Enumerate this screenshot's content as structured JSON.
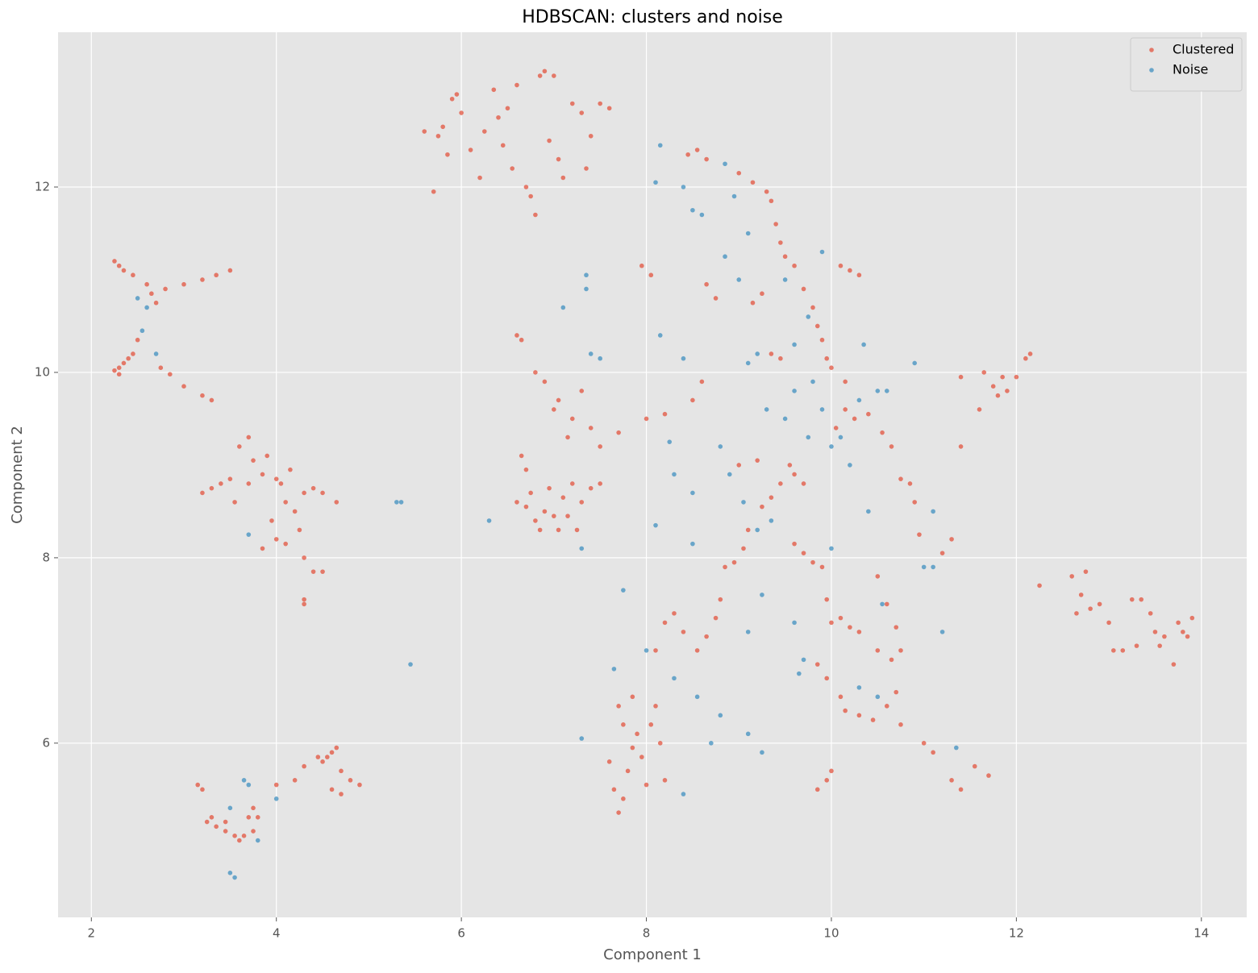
{
  "chart_data": {
    "type": "scatter",
    "title": "HDBSCAN: clusters and noise",
    "x_label": "Component 1",
    "y_label": "Component 2",
    "xlim": [
      1.64,
      14.49
    ],
    "ylim": [
      4.12,
      13.67
    ],
    "xticks": [
      2,
      4,
      6,
      8,
      10,
      12,
      14
    ],
    "yticks": [
      6,
      8,
      10,
      12
    ],
    "grid": true,
    "legend": "upper right",
    "series": [
      {
        "name": "Clustered",
        "color": "#E24A33",
        "x": [
          2.25,
          2.35,
          2.45,
          2.6,
          2.65,
          2.8,
          3.0,
          3.2,
          3.35,
          3.5,
          2.7,
          2.3,
          2.25,
          2.3,
          2.35,
          2.4,
          2.45,
          2.3,
          2.75,
          2.85,
          3.0,
          3.2,
          3.3,
          2.5,
          3.2,
          3.3,
          3.5,
          3.6,
          3.7,
          3.75,
          3.85,
          3.9,
          4.0,
          4.05,
          4.1,
          4.2,
          4.3,
          4.4,
          4.5,
          4.65,
          3.55,
          3.85,
          4.0,
          4.1,
          4.25,
          4.3,
          4.4,
          4.5,
          4.3,
          4.3,
          3.95,
          3.7,
          4.15,
          3.4,
          3.15,
          3.2,
          3.25,
          3.35,
          3.45,
          3.55,
          3.65,
          3.7,
          3.75,
          3.8,
          3.6,
          3.3,
          3.45,
          3.75,
          4.0,
          4.2,
          4.3,
          4.45,
          4.55,
          4.6,
          4.65,
          4.7,
          4.8,
          4.9,
          4.7,
          4.6,
          4.5,
          5.75,
          5.8,
          5.85,
          5.9,
          5.95,
          6.0,
          6.1,
          6.25,
          6.35,
          6.4,
          6.5,
          6.55,
          6.6,
          6.7,
          6.75,
          6.85,
          6.9,
          6.95,
          7.0,
          7.05,
          7.1,
          7.2,
          7.3,
          7.4,
          7.5,
          7.6,
          6.45,
          6.2,
          5.7,
          6.8,
          7.35,
          5.6,
          6.6,
          6.65,
          6.8,
          6.9,
          7.0,
          7.05,
          7.15,
          7.2,
          7.3,
          7.4,
          7.5,
          7.7,
          6.65,
          6.7,
          6.6,
          6.7,
          6.8,
          6.9,
          7.0,
          7.05,
          7.15,
          7.25,
          7.3,
          7.4,
          7.5,
          6.75,
          6.95,
          7.1,
          6.85,
          7.2,
          7.6,
          7.65,
          7.7,
          7.75,
          7.8,
          7.85,
          7.9,
          7.95,
          8.0,
          8.05,
          8.1,
          8.15,
          8.2,
          7.7,
          7.75,
          7.85,
          8.1,
          8.2,
          8.3,
          8.4,
          8.55,
          8.65,
          8.75,
          8.8,
          8.85,
          8.95,
          9.05,
          9.1,
          9.25,
          9.35,
          9.45,
          9.55,
          9.6,
          9.7,
          9.2,
          9.0,
          9.6,
          9.7,
          9.8,
          9.9,
          9.95,
          10.0,
          10.1,
          10.2,
          10.3,
          9.85,
          9.95,
          10.1,
          10.15,
          10.3,
          10.45,
          10.6,
          10.7,
          10.75,
          10.5,
          10.6,
          10.7,
          10.75,
          10.5,
          10.65,
          8.45,
          8.55,
          8.65,
          9.0,
          9.15,
          9.3,
          9.35,
          9.4,
          9.45,
          9.5,
          9.6,
          9.7,
          9.8,
          9.85,
          9.9,
          9.95,
          10.0,
          9.35,
          9.45,
          9.15,
          9.25,
          10.1,
          10.2,
          10.3,
          10.15,
          10.15,
          10.25,
          10.05,
          10.4,
          10.55,
          10.65,
          10.75,
          10.85,
          10.9,
          10.95,
          11.2,
          11.3,
          8.65,
          8.75,
          8.6,
          8.5,
          8.0,
          8.2,
          7.95,
          8.05,
          9.95,
          10.0,
          9.85,
          11.1,
          11.3,
          11.4,
          11.55,
          11.7,
          11.0,
          11.4,
          11.4,
          11.65,
          11.75,
          11.85,
          11.9,
          12.0,
          12.1,
          12.15,
          11.8,
          11.6,
          12.25,
          12.6,
          12.7,
          12.75,
          12.8,
          12.9,
          13.0,
          13.05,
          13.15,
          13.3,
          13.35,
          13.45,
          13.5,
          13.6,
          13.7,
          13.75,
          13.8,
          13.85,
          13.9,
          12.65,
          13.25,
          13.55
        ],
        "values": [
          11.2,
          11.1,
          11.05,
          10.95,
          10.85,
          10.9,
          10.95,
          11.0,
          11.05,
          11.1,
          10.75,
          11.15,
          10.02,
          10.05,
          10.1,
          10.15,
          10.2,
          9.98,
          10.05,
          9.98,
          9.85,
          9.75,
          9.7,
          10.35,
          8.7,
          8.75,
          8.85,
          9.2,
          9.3,
          9.05,
          8.9,
          9.1,
          8.85,
          8.8,
          8.6,
          8.5,
          8.7,
          8.75,
          8.7,
          8.6,
          8.6,
          8.1,
          8.2,
          8.15,
          8.3,
          8.0,
          7.85,
          7.85,
          7.55,
          7.5,
          8.4,
          8.8,
          8.95,
          8.8,
          5.55,
          5.5,
          5.15,
          5.1,
          5.05,
          5.0,
          5.0,
          5.2,
          5.3,
          5.2,
          4.95,
          5.2,
          5.15,
          5.05,
          5.55,
          5.6,
          5.75,
          5.85,
          5.85,
          5.9,
          5.95,
          5.7,
          5.6,
          5.55,
          5.45,
          5.5,
          5.8,
          12.55,
          12.65,
          12.35,
          12.95,
          13.0,
          12.8,
          12.4,
          12.6,
          13.05,
          12.75,
          12.85,
          12.2,
          13.1,
          12.0,
          11.9,
          13.2,
          13.25,
          12.5,
          13.2,
          12.3,
          12.1,
          12.9,
          12.8,
          12.55,
          12.9,
          12.85,
          12.45,
          12.1,
          11.95,
          11.7,
          12.2,
          12.6,
          10.4,
          10.35,
          10.0,
          9.9,
          9.6,
          9.7,
          9.3,
          9.5,
          9.8,
          9.4,
          9.2,
          9.35,
          9.1,
          8.95,
          8.6,
          8.55,
          8.4,
          8.5,
          8.45,
          8.3,
          8.45,
          8.3,
          8.6,
          8.75,
          8.8,
          8.7,
          8.75,
          8.65,
          8.3,
          8.8,
          5.8,
          5.5,
          5.25,
          5.4,
          5.7,
          5.95,
          6.1,
          5.85,
          5.55,
          6.2,
          6.4,
          6.0,
          5.6,
          6.4,
          6.2,
          6.5,
          7.0,
          7.3,
          7.4,
          7.2,
          7.0,
          7.15,
          7.35,
          7.55,
          7.9,
          7.95,
          8.1,
          8.3,
          8.55,
          8.65,
          8.8,
          9.0,
          8.9,
          8.8,
          9.05,
          9.0,
          8.15,
          8.05,
          7.95,
          7.9,
          7.55,
          7.3,
          7.35,
          7.25,
          7.2,
          6.85,
          6.7,
          6.5,
          6.35,
          6.3,
          6.25,
          6.4,
          6.55,
          6.2,
          7.8,
          7.5,
          7.25,
          7.0,
          7.0,
          6.9,
          12.35,
          12.4,
          12.3,
          12.15,
          12.05,
          11.95,
          11.85,
          11.6,
          11.4,
          11.25,
          11.15,
          10.9,
          10.7,
          10.5,
          10.35,
          10.15,
          10.05,
          10.2,
          10.15,
          10.75,
          10.85,
          11.15,
          11.1,
          11.05,
          9.9,
          9.6,
          9.5,
          9.4,
          9.55,
          9.35,
          9.2,
          8.85,
          8.8,
          8.6,
          8.25,
          8.05,
          8.2,
          10.95,
          10.8,
          9.9,
          9.7,
          9.5,
          9.55,
          11.15,
          11.05,
          5.6,
          5.7,
          5.5,
          5.9,
          5.6,
          5.5,
          5.75,
          5.65,
          6.0,
          9.2,
          9.95,
          10.0,
          9.85,
          9.95,
          9.8,
          9.95,
          10.15,
          10.2,
          9.75,
          9.6,
          7.7,
          7.8,
          7.6,
          7.85,
          7.45,
          7.5,
          7.3,
          7.0,
          7.0,
          7.05,
          7.55,
          7.4,
          7.2,
          7.15,
          6.85,
          7.3,
          7.2,
          7.15,
          7.35,
          7.4,
          7.55,
          7.05
        ]
      },
      {
        "name": "Noise",
        "color": "#348ABD",
        "x": [
          2.5,
          2.6,
          2.55,
          2.7,
          5.3,
          5.35,
          5.45,
          6.3,
          7.1,
          7.35,
          7.35,
          7.3,
          7.4,
          7.5,
          7.3,
          3.55,
          3.5,
          3.7,
          3.5,
          3.65,
          3.8,
          4.0,
          3.7,
          8.1,
          8.15,
          8.4,
          8.5,
          8.6,
          8.85,
          8.95,
          9.1,
          8.85,
          9.0,
          9.2,
          9.1,
          9.3,
          9.5,
          9.6,
          9.75,
          9.8,
          9.9,
          10.0,
          10.1,
          10.2,
          10.3,
          10.35,
          10.5,
          10.4,
          9.6,
          9.75,
          9.5,
          9.9,
          9.2,
          9.05,
          8.9,
          8.8,
          8.3,
          8.5,
          8.1,
          8.5,
          7.75,
          8.0,
          8.3,
          8.55,
          8.7,
          8.8,
          9.1,
          9.25,
          9.1,
          9.25,
          9.35,
          9.6,
          9.7,
          9.65,
          10.0,
          10.3,
          10.5,
          10.55,
          11.0,
          11.1,
          11.2,
          11.35,
          11.1,
          8.15,
          8.4,
          8.25,
          8.4,
          7.65,
          10.9,
          10.6
        ],
        "values": [
          10.8,
          10.7,
          10.45,
          10.2,
          8.6,
          8.6,
          6.85,
          8.4,
          10.7,
          11.05,
          10.9,
          8.1,
          10.2,
          10.15,
          6.05,
          4.55,
          4.6,
          5.55,
          5.3,
          5.6,
          4.95,
          5.4,
          8.25,
          12.05,
          12.45,
          12.0,
          11.75,
          11.7,
          12.25,
          11.9,
          11.5,
          11.25,
          11.0,
          10.2,
          10.1,
          9.6,
          9.5,
          9.8,
          9.3,
          9.9,
          9.6,
          9.2,
          9.3,
          9.0,
          9.7,
          10.3,
          9.8,
          8.5,
          10.3,
          10.6,
          11.0,
          11.3,
          8.3,
          8.6,
          8.9,
          9.2,
          8.9,
          8.7,
          8.35,
          8.15,
          7.65,
          7.0,
          6.7,
          6.5,
          6.0,
          6.3,
          6.1,
          5.9,
          7.2,
          7.6,
          8.4,
          7.3,
          6.9,
          6.75,
          8.1,
          6.6,
          6.5,
          7.5,
          7.9,
          7.9,
          7.2,
          5.95,
          8.5,
          10.4,
          10.15,
          9.25,
          5.45,
          6.8,
          10.1,
          9.8
        ]
      }
    ]
  }
}
